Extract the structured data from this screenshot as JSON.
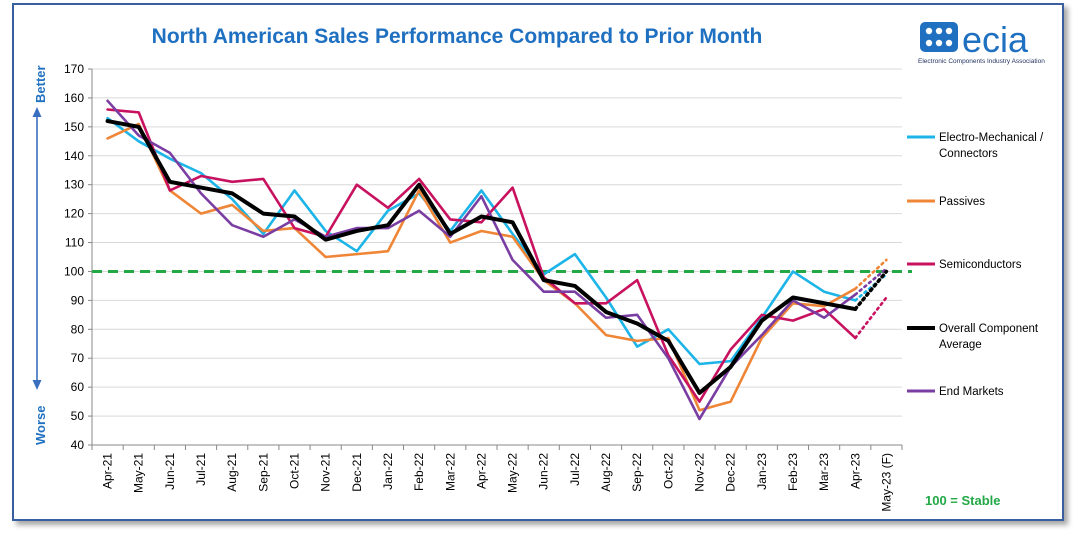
{
  "chart_data": {
    "type": "line",
    "title": "North American Sales Performance Compared to Prior Month",
    "ylabel_top": "Better",
    "ylabel_bottom": "Worse",
    "ylim": [
      40,
      170
    ],
    "yticks": [
      40,
      50,
      60,
      70,
      80,
      90,
      100,
      110,
      120,
      130,
      140,
      150,
      160,
      170
    ],
    "categories": [
      "Apr-21",
      "May-21",
      "Jun-21",
      "Jul-21",
      "Aug-21",
      "Sep-21",
      "Oct-21",
      "Nov-21",
      "Dec-21",
      "Jan-22",
      "Feb-22",
      "Mar-22",
      "Apr-22",
      "May-22",
      "Jun-22",
      "Jul-22",
      "Aug-22",
      "Sep-22",
      "Oct-22",
      "Nov-22",
      "Dec-22",
      "Jan-23",
      "Feb-23",
      "Mar-23",
      "Apr-23",
      "May-23 (F)"
    ],
    "reference_line": {
      "value": 100,
      "label": "100 = Stable",
      "color": "#22a845"
    },
    "series": [
      {
        "name": "Electro-Mechanical / Connectors",
        "color": "#1db4e8",
        "values": [
          153,
          145,
          139,
          134,
          125,
          113,
          128,
          114,
          107,
          121,
          127,
          114,
          128,
          113,
          99,
          106,
          91,
          74,
          80,
          68,
          69,
          84,
          100,
          93,
          90,
          null
        ],
        "forecast": 99
      },
      {
        "name": "Passives",
        "color": "#ef8536",
        "values": [
          146,
          151,
          128,
          120,
          123,
          114,
          115,
          105,
          106,
          107,
          128,
          110,
          114,
          112,
          97,
          89,
          78,
          76,
          77,
          52,
          55,
          77,
          89,
          88,
          94,
          null
        ],
        "forecast": 104
      },
      {
        "name": "Semiconductors",
        "color": "#c8125f",
        "values": [
          156,
          155,
          128,
          133,
          131,
          132,
          115,
          112,
          130,
          122,
          132,
          118,
          117,
          129,
          98,
          89,
          89,
          97,
          71,
          55,
          73,
          85,
          83,
          87,
          77,
          null
        ],
        "forecast": 91
      },
      {
        "name": "Overall Component Average",
        "color": "#000000",
        "values": [
          152,
          150,
          131,
          129,
          127,
          120,
          119,
          111,
          114,
          116,
          130,
          113,
          119,
          117,
          97,
          95,
          86,
          82,
          76,
          58,
          67,
          83,
          91,
          89,
          87,
          null
        ],
        "forecast": 100
      },
      {
        "name": "End Markets",
        "color": "#7a3ea3",
        "values": [
          159,
          147,
          141,
          127,
          116,
          112,
          118,
          112,
          115,
          115,
          121,
          112,
          126,
          104,
          93,
          93,
          84,
          85,
          70,
          49,
          67,
          78,
          90,
          84,
          92,
          null
        ],
        "forecast": 101
      }
    ],
    "legend_labels": [
      [
        "Electro-Mechanical /",
        "Connectors"
      ],
      [
        "Passives"
      ],
      [
        "Semiconductors"
      ],
      [
        "Overall Component",
        "Average"
      ],
      [
        "End Markets"
      ]
    ]
  },
  "logo": {
    "word": "ecia",
    "subtitle": "Electronic Components Industry Association",
    "color": "#1f70c1"
  }
}
